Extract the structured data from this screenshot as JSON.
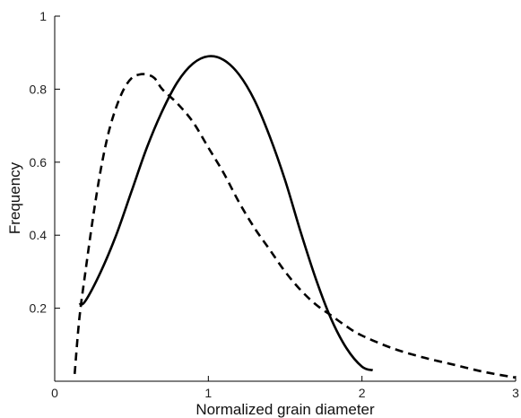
{
  "chart_data": {
    "type": "line",
    "title": "",
    "xlabel": "Normalized grain diameter",
    "ylabel": "Frequency",
    "xlim": [
      0,
      3
    ],
    "ylim": [
      0,
      1
    ],
    "xticks": [
      0,
      1,
      2,
      3
    ],
    "xtick_labels": [
      "0",
      "1",
      "2",
      "3"
    ],
    "yticks": [
      0.2,
      0.4,
      0.6,
      0.8,
      1
    ],
    "ytick_labels": [
      "0.2",
      "0.4",
      "0.6",
      "0.8",
      "1"
    ],
    "grid": false,
    "series": [
      {
        "style": "solid",
        "color": "#000000",
        "x": [
          0.16,
          0.2,
          0.3,
          0.4,
          0.5,
          0.6,
          0.7,
          0.8,
          0.9,
          1.0,
          1.1,
          1.2,
          1.3,
          1.4,
          1.5,
          1.6,
          1.7,
          1.8,
          1.9,
          2.0,
          2.07
        ],
        "y": [
          0.21,
          0.22,
          0.3,
          0.4,
          0.52,
          0.64,
          0.74,
          0.82,
          0.87,
          0.89,
          0.88,
          0.84,
          0.77,
          0.67,
          0.55,
          0.41,
          0.28,
          0.17,
          0.09,
          0.04,
          0.03
        ]
      },
      {
        "style": "dashed",
        "color": "#000000",
        "x": [
          0.13,
          0.16,
          0.2,
          0.25,
          0.3,
          0.35,
          0.4,
          0.45,
          0.5,
          0.55,
          0.6,
          0.65,
          0.7,
          0.8,
          0.9,
          1.0,
          1.1,
          1.2,
          1.3,
          1.4,
          1.5,
          1.6,
          1.7,
          1.8,
          1.9,
          2.0,
          2.2,
          2.4,
          2.6,
          2.8,
          3.0
        ],
        "y": [
          0.02,
          0.17,
          0.3,
          0.45,
          0.58,
          0.68,
          0.75,
          0.8,
          0.83,
          0.84,
          0.84,
          0.83,
          0.8,
          0.76,
          0.71,
          0.64,
          0.57,
          0.49,
          0.42,
          0.36,
          0.3,
          0.25,
          0.21,
          0.18,
          0.15,
          0.125,
          0.09,
          0.065,
          0.045,
          0.025,
          0.01
        ]
      }
    ]
  }
}
